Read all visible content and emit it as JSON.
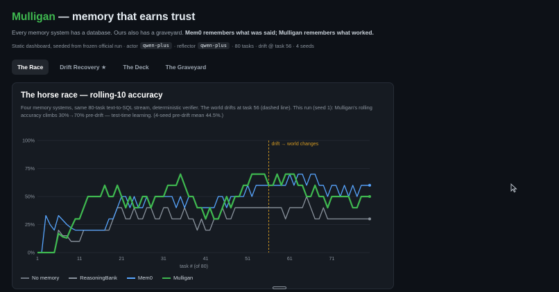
{
  "header": {
    "brand": "Mulligan",
    "title_rest": " — memory that earns trust",
    "tagline_plain": "Every memory system has a database. Ours also has a graveyard. ",
    "tagline_bold": "Mem0 remembers what was said; Mulligan remembers what worked.",
    "meta": {
      "prefix": "Static dashboard, seeded from frozen official run · actor",
      "actor": "qwen-plus",
      "reflector_label": "· reflector",
      "reflector": "qwen-plus",
      "suffix": "· 80 tasks · drift @ task 56 · 4 seeds"
    }
  },
  "tabs": [
    {
      "label": "The Race",
      "active": true
    },
    {
      "label": "Drift Recovery ★",
      "active": false
    },
    {
      "label": "The Deck",
      "active": false
    },
    {
      "label": "The Graveyard",
      "active": false
    }
  ],
  "card": {
    "title": "The horse race — rolling-10 accuracy",
    "description": "Four memory systems, same 80-task text-to-SQL stream, deterministic verifier. The world drifts at task 56 (dashed line). This run (seed 1): Mulligan's rolling accuracy climbs 30%→70% pre-drift — test-time learning. (4-seed pre-drift mean 44.5%.)"
  },
  "chart_data": {
    "type": "line",
    "xlabel": "task # (of 80)",
    "ylabel": "",
    "xlim": [
      1,
      80
    ],
    "ylim": [
      0,
      1
    ],
    "x_ticks": [
      1,
      11,
      21,
      31,
      41,
      51,
      61,
      71
    ],
    "y_ticks": [
      {
        "value": 0,
        "label": "0%"
      },
      {
        "value": 0.25,
        "label": "25%"
      },
      {
        "value": 0.5,
        "label": "50%"
      },
      {
        "value": 0.75,
        "label": "75%"
      },
      {
        "value": 1,
        "label": "100%"
      }
    ],
    "grid": true,
    "legend_position": "bottom",
    "annotation": {
      "x": 56,
      "label": "drift → world changes",
      "color": "#d29922"
    },
    "series": [
      {
        "name": "No memory",
        "color": "#6e7681",
        "values": []
      },
      {
        "name": "ReasoningBank",
        "color": "#8b949e",
        "values": [
          0,
          0,
          0,
          0,
          0,
          0.2,
          0.15,
          0.15,
          0.1,
          0.1,
          0.1,
          0.2,
          0.2,
          0.2,
          0.2,
          0.2,
          0.2,
          0.2,
          0.3,
          0.4,
          0.4,
          0.3,
          0.3,
          0.4,
          0.3,
          0.3,
          0.4,
          0.4,
          0.3,
          0.3,
          0.4,
          0.4,
          0.3,
          0.3,
          0.3,
          0.4,
          0.3,
          0.3,
          0.2,
          0.3,
          0.2,
          0.2,
          0.3,
          0.3,
          0.4,
          0.3,
          0.3,
          0.4,
          0.4,
          0.4,
          0.4,
          0.4,
          0.4,
          0.4,
          0.4,
          0.4,
          0.4,
          0.4,
          0.4,
          0.3,
          0.4,
          0.4,
          0.4,
          0.4,
          0.5,
          0.4,
          0.3,
          0.3,
          0.4,
          0.3,
          0.3,
          0.3,
          0.3,
          0.3,
          0.3,
          0.3,
          0.3,
          0.3,
          0.3,
          0.3
        ]
      },
      {
        "name": "Mem0",
        "color": "#58a6ff",
        "values": [
          0,
          0,
          0.33,
          0.25,
          0.2,
          0.33,
          0.29,
          0.25,
          0.22,
          0.2,
          0.2,
          0.2,
          0.2,
          0.2,
          0.2,
          0.2,
          0.2,
          0.3,
          0.3,
          0.4,
          0.5,
          0.5,
          0.4,
          0.5,
          0.4,
          0.4,
          0.5,
          0.4,
          0.5,
          0.5,
          0.5,
          0.5,
          0.5,
          0.4,
          0.5,
          0.4,
          0.5,
          0.5,
          0.4,
          0.4,
          0.4,
          0.4,
          0.4,
          0.5,
          0.5,
          0.4,
          0.5,
          0.5,
          0.5,
          0.5,
          0.6,
          0.5,
          0.6,
          0.6,
          0.6,
          0.6,
          0.6,
          0.6,
          0.6,
          0.6,
          0.7,
          0.6,
          0.7,
          0.7,
          0.6,
          0.7,
          0.7,
          0.6,
          0.6,
          0.5,
          0.6,
          0.6,
          0.5,
          0.6,
          0.5,
          0.6,
          0.5,
          0.6,
          0.6,
          0.6
        ]
      },
      {
        "name": "Mulligan",
        "color": "#3fb950",
        "values": [
          0,
          0,
          0,
          0,
          0,
          0.17,
          0.14,
          0.13,
          0.22,
          0.3,
          0.3,
          0.4,
          0.5,
          0.5,
          0.5,
          0.5,
          0.6,
          0.5,
          0.5,
          0.6,
          0.5,
          0.4,
          0.5,
          0.4,
          0.4,
          0.5,
          0.5,
          0.4,
          0.5,
          0.5,
          0.5,
          0.6,
          0.6,
          0.6,
          0.7,
          0.6,
          0.5,
          0.5,
          0.4,
          0.4,
          0.3,
          0.4,
          0.3,
          0.3,
          0.4,
          0.5,
          0.4,
          0.5,
          0.5,
          0.6,
          0.6,
          0.7,
          0.7,
          0.7,
          0.7,
          0.6,
          0.6,
          0.7,
          0.6,
          0.7,
          0.7,
          0.7,
          0.6,
          0.6,
          0.5,
          0.5,
          0.6,
          0.5,
          0.5,
          0.4,
          0.5,
          0.5,
          0.5,
          0.5,
          0.5,
          0.4,
          0.4,
          0.5,
          0.5,
          0.5
        ]
      }
    ]
  }
}
